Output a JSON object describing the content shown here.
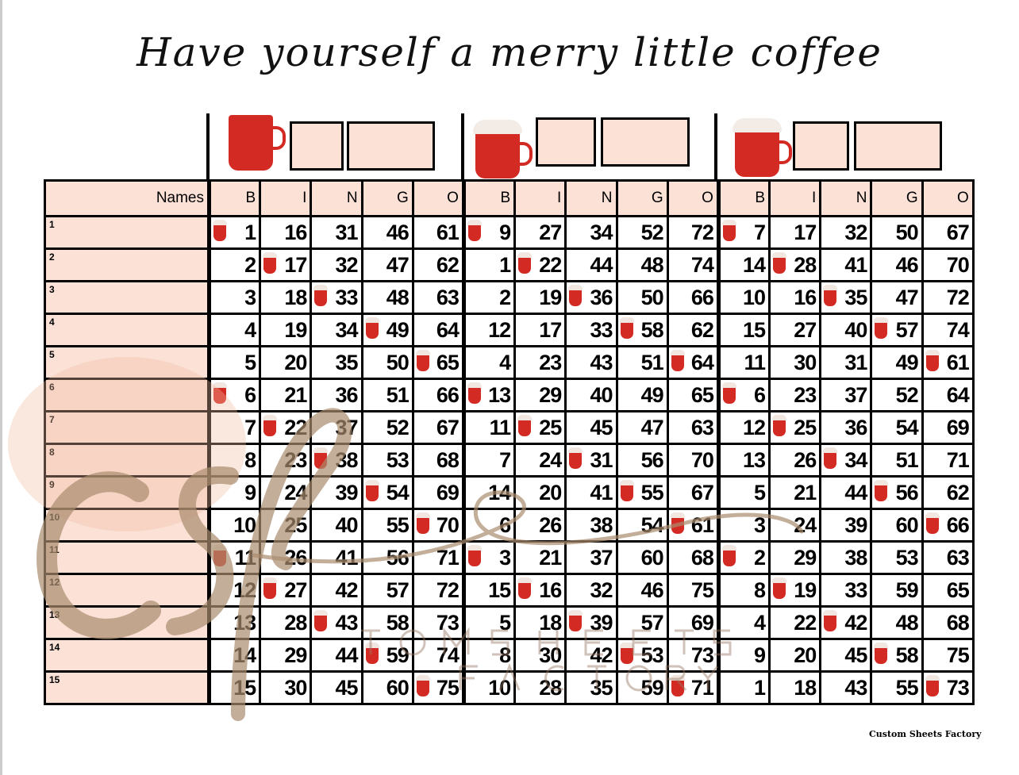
{
  "title": "Have yourself a merry little coffee",
  "names_header": "Names",
  "columns": [
    "B",
    "I",
    "N",
    "G",
    "O"
  ],
  "row_labels": [
    "1",
    "2",
    "3",
    "4",
    "5",
    "6",
    "7",
    "8",
    "9",
    "10",
    "11",
    "12",
    "13",
    "14",
    "15"
  ],
  "marker_icon": "coffee-mug-icon",
  "cards": [
    {
      "rows": [
        [
          1,
          16,
          31,
          46,
          61
        ],
        [
          2,
          17,
          32,
          47,
          62
        ],
        [
          3,
          18,
          33,
          48,
          63
        ],
        [
          4,
          19,
          34,
          49,
          64
        ],
        [
          5,
          20,
          35,
          50,
          65
        ],
        [
          6,
          21,
          36,
          51,
          66
        ],
        [
          7,
          22,
          37,
          52,
          67
        ],
        [
          8,
          23,
          38,
          53,
          68
        ],
        [
          9,
          24,
          39,
          54,
          69
        ],
        [
          10,
          25,
          40,
          55,
          70
        ],
        [
          11,
          26,
          41,
          56,
          71
        ],
        [
          12,
          27,
          42,
          57,
          72
        ],
        [
          13,
          28,
          43,
          58,
          73
        ],
        [
          14,
          29,
          44,
          59,
          74
        ],
        [
          15,
          30,
          45,
          60,
          75
        ]
      ]
    },
    {
      "rows": [
        [
          9,
          27,
          34,
          52,
          72
        ],
        [
          1,
          22,
          44,
          48,
          74
        ],
        [
          2,
          19,
          36,
          50,
          66
        ],
        [
          12,
          17,
          33,
          58,
          62
        ],
        [
          4,
          23,
          43,
          51,
          64
        ],
        [
          13,
          29,
          40,
          49,
          65
        ],
        [
          11,
          25,
          45,
          47,
          63
        ],
        [
          7,
          24,
          31,
          56,
          70
        ],
        [
          14,
          20,
          41,
          55,
          67
        ],
        [
          6,
          26,
          38,
          54,
          61
        ],
        [
          3,
          21,
          37,
          60,
          68
        ],
        [
          15,
          16,
          32,
          46,
          75
        ],
        [
          5,
          18,
          39,
          57,
          69
        ],
        [
          8,
          30,
          42,
          53,
          73
        ],
        [
          10,
          28,
          35,
          59,
          71
        ]
      ]
    },
    {
      "rows": [
        [
          7,
          17,
          32,
          50,
          67
        ],
        [
          14,
          28,
          41,
          46,
          70
        ],
        [
          10,
          16,
          35,
          47,
          72
        ],
        [
          15,
          27,
          40,
          57,
          74
        ],
        [
          11,
          30,
          31,
          49,
          61
        ],
        [
          6,
          23,
          37,
          52,
          64
        ],
        [
          12,
          25,
          36,
          54,
          69
        ],
        [
          13,
          26,
          34,
          51,
          71
        ],
        [
          5,
          21,
          44,
          56,
          62
        ],
        [
          3,
          24,
          39,
          60,
          66
        ],
        [
          2,
          29,
          38,
          53,
          63
        ],
        [
          8,
          19,
          33,
          59,
          65
        ],
        [
          4,
          22,
          42,
          48,
          68
        ],
        [
          9,
          20,
          45,
          58,
          75
        ],
        [
          1,
          18,
          43,
          55,
          73
        ]
      ]
    }
  ],
  "watermark": {
    "monogram": "csf",
    "line1": "CUSTOM SHEETS",
    "line2": "FACTORY"
  },
  "footer": "Custom Sheets Factory",
  "colors": {
    "header_fill": "#fbe1d6",
    "mug_red": "#d42a24"
  }
}
